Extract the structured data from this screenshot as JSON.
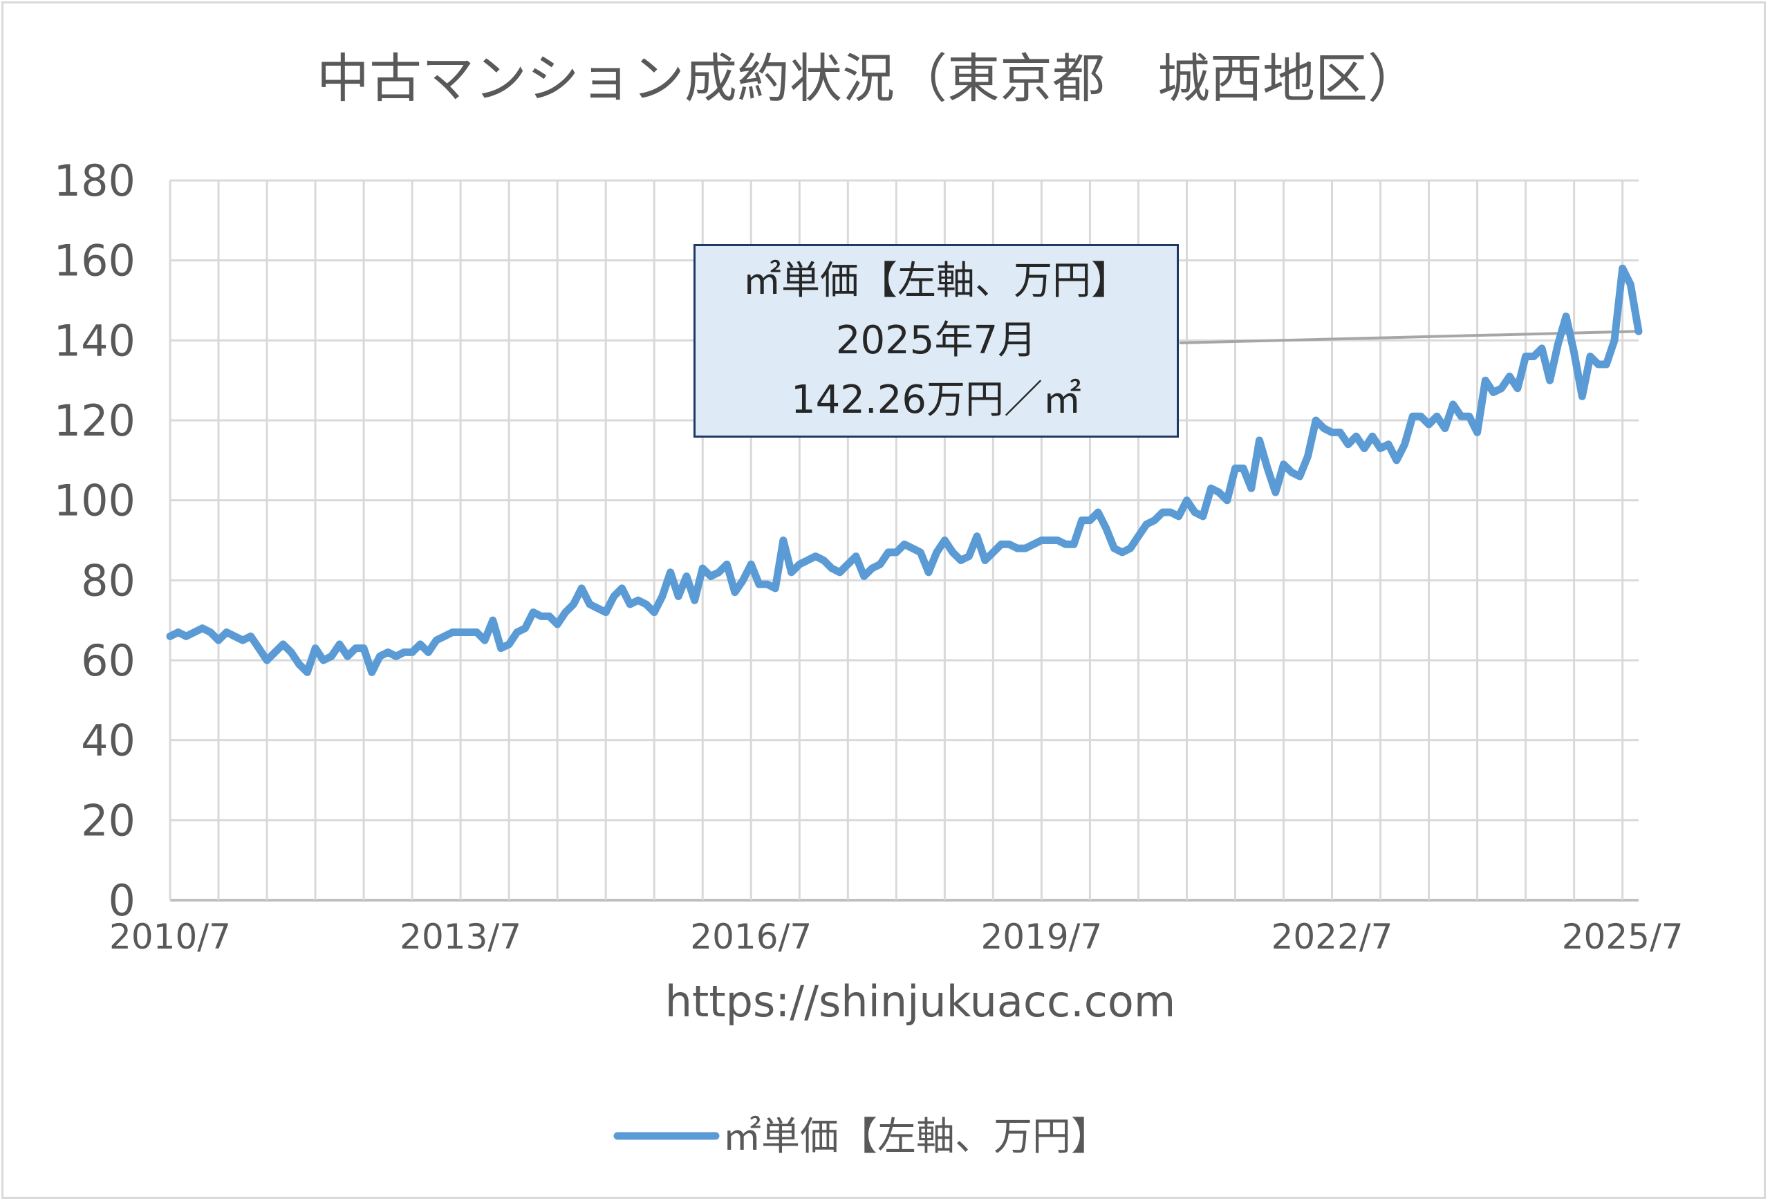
{
  "chart_data": {
    "type": "line",
    "title": "中古マンション成約状況（東京都　城西地区）",
    "ylim": [
      0,
      180
    ],
    "yticks": [
      0,
      20,
      40,
      60,
      80,
      100,
      120,
      140,
      160,
      180
    ],
    "xtick_labels": [
      "2010/7",
      "2013/7",
      "2016/7",
      "2019/7",
      "2022/7",
      "2025/7"
    ],
    "x_start": "2010/7",
    "x_end": "2025/7",
    "grid": true,
    "legend_position": "bottom",
    "source_text": "https://shinjukuacc.com",
    "series": [
      {
        "name": "㎡単価【左軸、万円】",
        "color": "#5b9bd5",
        "values": [
          66,
          67,
          66,
          67,
          68,
          67,
          65,
          67,
          66,
          65,
          66,
          63,
          60,
          62,
          64,
          62,
          59,
          57,
          63,
          60,
          61,
          64,
          61,
          63,
          63,
          57,
          61,
          62,
          61,
          62,
          62,
          64,
          62,
          65,
          66,
          67,
          67,
          67,
          67,
          65,
          70,
          63,
          64,
          67,
          68,
          72,
          71,
          71,
          69,
          72,
          74,
          78,
          74,
          73,
          72,
          76,
          78,
          74,
          75,
          74,
          72,
          76,
          82,
          76,
          81,
          75,
          83,
          81,
          82,
          84,
          77,
          80,
          84,
          79,
          79,
          78,
          90,
          82,
          84,
          85,
          86,
          85,
          83,
          82,
          84,
          86,
          81,
          83,
          84,
          87,
          87,
          89,
          88,
          87,
          82,
          87,
          90,
          87,
          85,
          86,
          91,
          85,
          87,
          89,
          89,
          88,
          88,
          89,
          90,
          90,
          90,
          89,
          89,
          95,
          95,
          97,
          93,
          88,
          87,
          88,
          91,
          94,
          95,
          97,
          97,
          96,
          100,
          97,
          96,
          103,
          102,
          100,
          108,
          108,
          103,
          115,
          108,
          102,
          109,
          107,
          106,
          111,
          120,
          118,
          117,
          117,
          114,
          116,
          113,
          116,
          113,
          114,
          110,
          114,
          121,
          121,
          119,
          121,
          118,
          124,
          121,
          121,
          117,
          130,
          127,
          128,
          131,
          128,
          136,
          136,
          138,
          130,
          139,
          146,
          137,
          126,
          136,
          134,
          134,
          140,
          158,
          154,
          142.26
        ]
      }
    ],
    "annotation": {
      "line1": "㎡単価【左軸、万円】",
      "line2": "2025年7月",
      "line3": "142.26万円／㎡"
    }
  }
}
